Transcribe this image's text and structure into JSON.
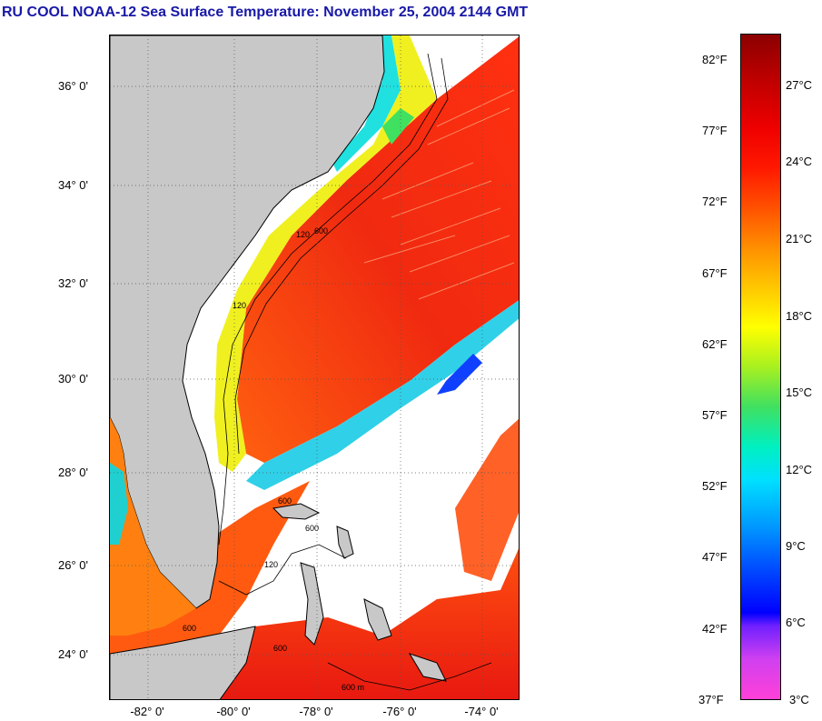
{
  "title": "RU COOL  NOAA-12  Sea Surface Temperature:  November 25, 2004 2144 GMT",
  "map": {
    "latitude_labels": [
      "36° 0'",
      "34° 0'",
      "32° 0'",
      "30° 0'",
      "28° 0'",
      "26° 0'",
      "24° 0'"
    ],
    "longitude_labels": [
      "-82° 0'",
      "-80° 0'",
      "-78° 0'",
      "-76° 0'",
      "-74° 0'"
    ],
    "contour_labels": [
      "120",
      "600",
      "120",
      "600",
      "600",
      "120",
      "600",
      "600",
      "600 m"
    ],
    "colors": {
      "land": "#c8c8c8",
      "cloud": "#ffffff",
      "gulf_stream": "#f02010",
      "warm_water": "#ff7a10",
      "coastal_yellow": "#f0f020",
      "coastal_cyan": "#20e0e0",
      "cold_blue": "#1040ff"
    }
  },
  "colorbar": {
    "fahrenheit_labels": [
      "82°F",
      "77°F",
      "72°F",
      "67°F",
      "62°F",
      "57°F",
      "52°F",
      "47°F",
      "42°F",
      "37°F"
    ],
    "celsius_labels": [
      "27°C",
      "24°C",
      "21°C",
      "18°C",
      "15°C",
      "12°C",
      "9°C",
      "6°C",
      "3°C"
    ]
  }
}
